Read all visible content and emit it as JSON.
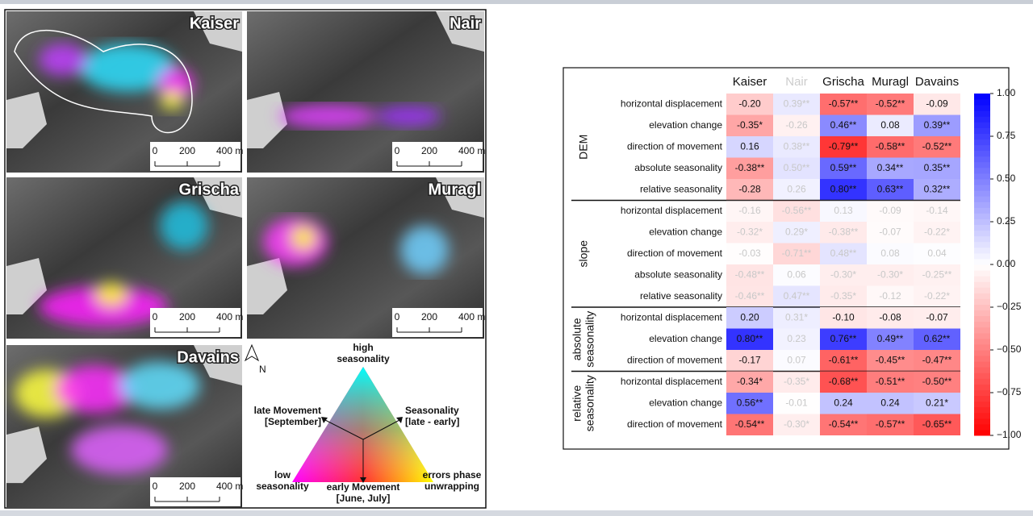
{
  "map_panels": [
    {
      "name": "Kaiser",
      "scale": [
        "0",
        "200",
        "400 m"
      ]
    },
    {
      "name": "Nair",
      "scale": [
        "0",
        "200",
        "400 m"
      ]
    },
    {
      "name": "Grischa",
      "scale": [
        "0",
        "200",
        "400 m"
      ]
    },
    {
      "name": "Muragl",
      "scale": [
        "0",
        "200",
        "400 m"
      ]
    },
    {
      "name": "Davains",
      "scale": [
        "0",
        "200",
        "400 m"
      ]
    }
  ],
  "map_legend": {
    "north": "N",
    "top": [
      "high",
      "seasonality"
    ],
    "left": [
      "late Movement",
      "[September]"
    ],
    "right": [
      "Seasonality",
      "[late - early]"
    ],
    "bottom_left": [
      "low",
      "seasonality"
    ],
    "bottom": [
      "early Movement",
      "[June, July]"
    ],
    "bottom_right": [
      "errors phase",
      "unwrapping"
    ]
  },
  "chart_data": {
    "type": "heatmap",
    "columns": [
      "Kaiser",
      "Nair",
      "Grischa",
      "Muragl",
      "Davains"
    ],
    "muted_columns": [
      1
    ],
    "muted_groups": [
      1
    ],
    "low_color": "#ff0000",
    "mid_color": "#ffffff",
    "high_color": "#0000ff",
    "colorbar_lim": [
      -1,
      1
    ],
    "colorbar_ticks": [
      {
        "value": 1,
        "label": "1.00"
      },
      {
        "value": 0.75,
        "label": "0.75"
      },
      {
        "value": 0.5,
        "label": "0.50"
      },
      {
        "value": 0.25,
        "label": "0.25"
      },
      {
        "value": 0,
        "label": "0.00"
      },
      {
        "value": -0.25,
        "label": "−0.25"
      },
      {
        "value": -0.5,
        "label": "−0.50"
      },
      {
        "value": -0.75,
        "label": "−0.75"
      },
      {
        "value": -1,
        "label": "−1.00"
      }
    ],
    "groups": [
      {
        "name": [
          "DEM"
        ],
        "rows": [
          {
            "name": "horizontal displacement",
            "values": [
              -0.2,
              0.39,
              -0.57,
              -0.52,
              -0.09
            ],
            "value_labels": [
              "-0.20",
              "0.39**",
              "-0.57**",
              "-0.52**",
              "-0.09"
            ]
          },
          {
            "name": "elevation change",
            "values": [
              -0.35,
              -0.26,
              0.46,
              0.08,
              0.39
            ],
            "value_labels": [
              "-0.35*",
              "-0.26",
              "0.46**",
              "0.08",
              "0.39**"
            ]
          },
          {
            "name": "direction of movement",
            "values": [
              0.16,
              0.38,
              -0.79,
              -0.58,
              -0.52
            ],
            "value_labels": [
              "0.16",
              "0.38**",
              "-0.79**",
              "-0.58**",
              "-0.52**"
            ]
          },
          {
            "name": "absolute seasonality",
            "values": [
              -0.38,
              0.5,
              0.59,
              0.34,
              0.35
            ],
            "value_labels": [
              "-0.38**",
              "0.50**",
              "0.59**",
              "0.34**",
              "0.35**"
            ]
          },
          {
            "name": "relative seasonality",
            "values": [
              -0.28,
              0.26,
              0.8,
              0.63,
              0.32
            ],
            "value_labels": [
              "-0.28",
              "0.26",
              "0.80**",
              "0.63**",
              "0.32**"
            ]
          }
        ]
      },
      {
        "name": [
          "slope"
        ],
        "rows": [
          {
            "name": "horizontal displacement",
            "values": [
              -0.16,
              -0.56,
              0.13,
              -0.09,
              -0.14
            ],
            "value_labels": [
              "-0.16",
              "-0.56**",
              "0.13",
              "-0.09",
              "-0.14"
            ]
          },
          {
            "name": "elevation change",
            "values": [
              -0.32,
              0.29,
              -0.38,
              -0.07,
              -0.22
            ],
            "value_labels": [
              "-0.32*",
              "0.29*",
              "-0.38**",
              "-0.07",
              "-0.22*"
            ]
          },
          {
            "name": "direction of movement",
            "values": [
              -0.03,
              -0.71,
              0.48,
              0.08,
              0.04
            ],
            "value_labels": [
              "-0.03",
              "-0.71**",
              "0.48**",
              "0.08",
              "0.04"
            ]
          },
          {
            "name": "absolute seasonality",
            "values": [
              -0.48,
              0.06,
              -0.3,
              -0.3,
              -0.25
            ],
            "value_labels": [
              "-0.48**",
              "0.06",
              "-0.30*",
              "-0.30*",
              "-0.25**"
            ]
          },
          {
            "name": "relative seasonality",
            "values": [
              -0.46,
              0.47,
              -0.35,
              -0.12,
              -0.22
            ],
            "value_labels": [
              "-0.46**",
              "0.47**",
              "-0.35*",
              "-0.12",
              "-0.22*"
            ]
          }
        ]
      },
      {
        "name": [
          "absolute",
          "seasonality"
        ],
        "rows": [
          {
            "name": "horizontal displacement",
            "values": [
              0.2,
              0.31,
              -0.1,
              -0.08,
              -0.07
            ],
            "value_labels": [
              "0.20",
              "0.31*",
              "-0.10",
              "-0.08",
              "-0.07"
            ]
          },
          {
            "name": "elevation change",
            "values": [
              0.8,
              0.23,
              0.76,
              0.49,
              0.62
            ],
            "value_labels": [
              "0.80**",
              "0.23",
              "0.76**",
              "0.49**",
              "0.62**"
            ]
          },
          {
            "name": "direction of movement",
            "values": [
              -0.17,
              0.07,
              -0.61,
              -0.45,
              -0.47
            ],
            "value_labels": [
              "-0.17",
              "0.07",
              "-0.61**",
              "-0.45**",
              "-0.47**"
            ]
          }
        ]
      },
      {
        "name": [
          "relative",
          "seasonality"
        ],
        "rows": [
          {
            "name": "horizontal displacement",
            "values": [
              -0.34,
              -0.35,
              -0.68,
              -0.51,
              -0.5
            ],
            "value_labels": [
              "-0.34*",
              "-0.35*",
              "-0.68**",
              "-0.51**",
              "-0.50**"
            ]
          },
          {
            "name": "elevation change",
            "values": [
              0.56,
              -0.01,
              0.24,
              0.24,
              0.21
            ],
            "value_labels": [
              "0.56**",
              "-0.01",
              "0.24",
              "0.24",
              "0.21*"
            ]
          },
          {
            "name": "direction of movement",
            "values": [
              -0.54,
              -0.3,
              -0.54,
              -0.57,
              -0.65
            ],
            "value_labels": [
              "-0.54**",
              "-0.30*",
              "-0.54**",
              "-0.57**",
              "-0.65**"
            ]
          }
        ]
      }
    ]
  }
}
